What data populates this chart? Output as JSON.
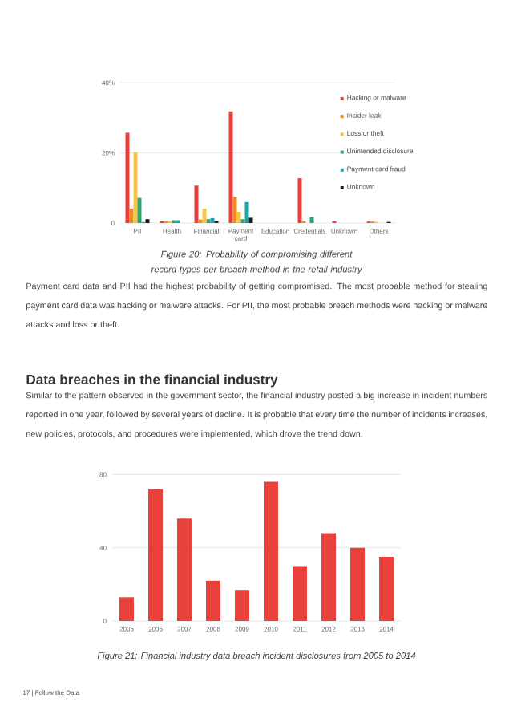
{
  "chart_data": [
    {
      "type": "bar",
      "categories": [
        "PII",
        "Health",
        "Financial",
        "Payment card",
        "Education",
        "Credentials",
        "Unknown",
        "Others"
      ],
      "ylim": [
        0,
        40
      ],
      "yticks": [
        {
          "value": 0,
          "label": "0"
        },
        {
          "value": 20,
          "label": "20%"
        },
        {
          "value": 40,
          "label": "40%"
        }
      ],
      "grid": "y",
      "legend": "right",
      "series": [
        {
          "name": "Hacking or malware",
          "color": "#e8403a",
          "values": [
            25.8,
            0.5,
            10.7,
            31.9,
            0,
            12.8,
            0.5,
            0.4
          ]
        },
        {
          "name": "Insider leak",
          "color": "#f08a24",
          "values": [
            4.1,
            0.5,
            1.0,
            7.5,
            0,
            0.5,
            0,
            0.4
          ]
        },
        {
          "name": "Loss or theft",
          "color": "#f5c842",
          "values": [
            20.2,
            0.5,
            4.1,
            3.2,
            0,
            0,
            0,
            0.3
          ]
        },
        {
          "name": "Unintended disclosure",
          "color": "#2ea56b",
          "values": [
            7.2,
            0.8,
            1.1,
            1.1,
            0,
            1.7,
            0,
            0
          ]
        },
        {
          "name": "Payment card fraud",
          "color": "#1ea3a6",
          "values": [
            0.3,
            0.8,
            1.4,
            6.0,
            0,
            0,
            0,
            0
          ]
        },
        {
          "name": "Unknown",
          "color": "#1b1b2b",
          "values": [
            1.1,
            0,
            0.6,
            1.5,
            0,
            0,
            0,
            0.3
          ]
        }
      ],
      "annotations": [
        "Figure 20: Probability of compromising different record types per breach method in the retail industry",
        "Payment card data and PII had the highest probability of getting compromised. The most probable method for stealing payment card data was hacking or malware attacks. For PII, the most probable breach methods were hacking or malware attacks and loss or theft."
      ]
    },
    {
      "type": "bar",
      "title": "Data breaches in the financial industry",
      "subtitle": "Similar to the pattern observed in the government sector, the financial industry posted a big increase in incident numbers reported in one year, followed by several years of decline. It is probable that every time the number of incidents increases, new policies, protocols, and procedures were implemented, which drove the trend down.",
      "categories": [
        "2005",
        "2006",
        "2007",
        "2008",
        "2009",
        "2010",
        "2011",
        "2012",
        "2013",
        "2014"
      ],
      "values": [
        13,
        72,
        56,
        22,
        17,
        76,
        30,
        48,
        40,
        35
      ],
      "color": "#e8403a",
      "ylim": [
        0,
        80
      ],
      "yticks": [
        0,
        40,
        80
      ],
      "grid": "y",
      "annotations": [
        "Figure 21: Financial industry data breach incident disclosures from 2005 to 2014",
        "17 | Follow the Data"
      ]
    }
  ]
}
